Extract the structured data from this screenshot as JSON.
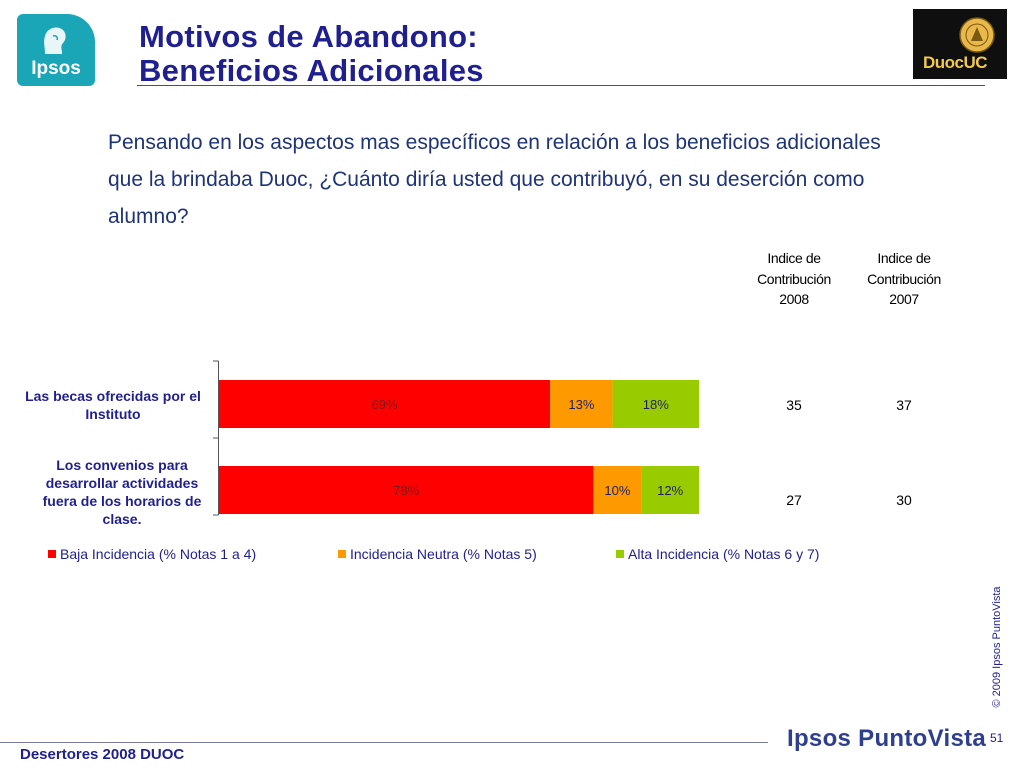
{
  "header": {
    "title_line1": "Motivos de Abandono:",
    "title_line2": "Beneficios Adicionales",
    "ipsos_logo_text": "Ipsos",
    "duoc_logo_text": "DuocUC"
  },
  "question": "Pensando en los aspectos mas específicos en relación a los beneficios adicionales que la brindaba Duoc, ¿Cuánto diría usted que contribuyó,  en su deserción como alumno?",
  "index_table": {
    "headers": [
      [
        "Indice de",
        "Contribución",
        "2008"
      ],
      [
        "Indice de",
        "Contribución",
        "2007"
      ]
    ],
    "rows": [
      [
        "35",
        "37"
      ],
      [
        "27",
        "30"
      ]
    ]
  },
  "chart_data": {
    "type": "bar",
    "orientation": "horizontal",
    "stacked": true,
    "categories": [
      "Las becas ofrecidas por el Instituto",
      "Los convenios para desarrollar actividades fuera de los horarios de clase."
    ],
    "series": [
      {
        "name": "Baja Incidencia (% Notas 1 a 4)",
        "values": [
          69,
          78
        ],
        "labels": [
          "69%",
          "78%"
        ],
        "color": "#ff0000"
      },
      {
        "name": "Incidencia Neutra (% Notas 5)",
        "values": [
          13,
          10
        ],
        "labels": [
          "13%",
          "10%"
        ],
        "color": "#ff9900"
      },
      {
        "name": "Alta Incidencia (% Notas 6 y 7)",
        "values": [
          18,
          12
        ],
        "labels": [
          "18%",
          "12%"
        ],
        "color": "#99cc00"
      }
    ],
    "xlim": [
      0,
      100
    ],
    "legend_position": "bottom"
  },
  "category_labels": [
    [
      "Las becas ofrecidas por el",
      "Instituto"
    ],
    [
      "Los convenios para",
      "desarrollar actividades",
      "fuera de los horarios de",
      "clase."
    ]
  ],
  "copyright": "© 2009 Ipsos PuntoVista",
  "footer": {
    "left": "Desertores 2008 DUOC",
    "brand": "Ipsos PuntoVista",
    "page": "51"
  }
}
